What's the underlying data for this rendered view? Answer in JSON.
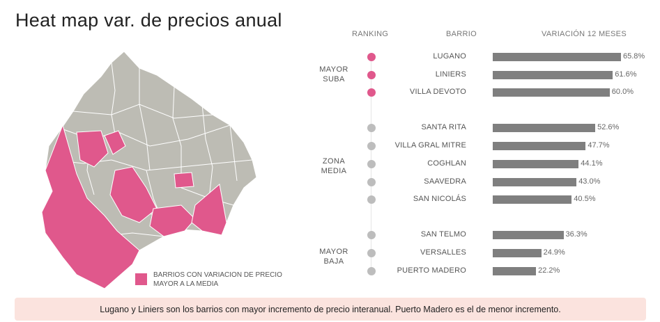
{
  "title": "Heat map var. de precios anual",
  "headers": {
    "ranking": "RANKING",
    "barrio": "BARRIO",
    "variacion": "VARIACIÓN 12 MESES"
  },
  "groups": [
    {
      "line1": "MAYOR",
      "line2": "SUBA"
    },
    {
      "line1": "ZONA",
      "line2": "MEDIA"
    },
    {
      "line1": "MAYOR",
      "line2": "BAJA"
    }
  ],
  "legend": {
    "label": "BARRIOS CON VARIACION DE PRECIO MAYOR A LA MEDIA",
    "color": "#e0588c"
  },
  "colors": {
    "highlight": "#e0588c",
    "neutral": "#bdbdbd",
    "bar": "#7f7f7f",
    "map_base": "#bdbcb4"
  },
  "chart_data": {
    "type": "bar",
    "orientation": "horizontal",
    "title": "",
    "xlabel": "VARIACIÓN 12 MESES",
    "ylabel": "BARRIO",
    "xlim": [
      0,
      70
    ],
    "categories": [
      "LUGANO",
      "LINIERS",
      "VILLA DEVOTO",
      "SANTA RITA",
      "VILLA GRAL MITRE",
      "COGHLAN",
      "SAAVEDRA",
      "SAN NICOLÁS",
      "SAN TELMO",
      "VERSALLES",
      "PUERTO MADERO"
    ],
    "values": [
      65.8,
      61.6,
      60.0,
      52.6,
      47.7,
      44.1,
      43.0,
      40.5,
      36.3,
      24.9,
      22.2
    ],
    "labels": [
      "65.8%",
      "61.6%",
      "60.0%",
      "52.6%",
      "47.7%",
      "44.1%",
      "43.0%",
      "40.5%",
      "36.3%",
      "24.9%",
      "22.2%"
    ],
    "group": [
      "MAYOR SUBA",
      "MAYOR SUBA",
      "MAYOR SUBA",
      "ZONA MEDIA",
      "ZONA MEDIA",
      "ZONA MEDIA",
      "ZONA MEDIA",
      "ZONA MEDIA",
      "MAYOR BAJA",
      "MAYOR BAJA",
      "MAYOR BAJA"
    ],
    "dot_color": [
      "#e0588c",
      "#e0588c",
      "#e0588c",
      "#bdbdbd",
      "#bdbdbd",
      "#bdbdbd",
      "#bdbdbd",
      "#bdbdbd",
      "#bdbdbd",
      "#bdbdbd",
      "#bdbdbd"
    ]
  },
  "footer": "Lugano y Liniers son los barrios con mayor incremento de precio interanual. Puerto Madero es el de menor incremento."
}
